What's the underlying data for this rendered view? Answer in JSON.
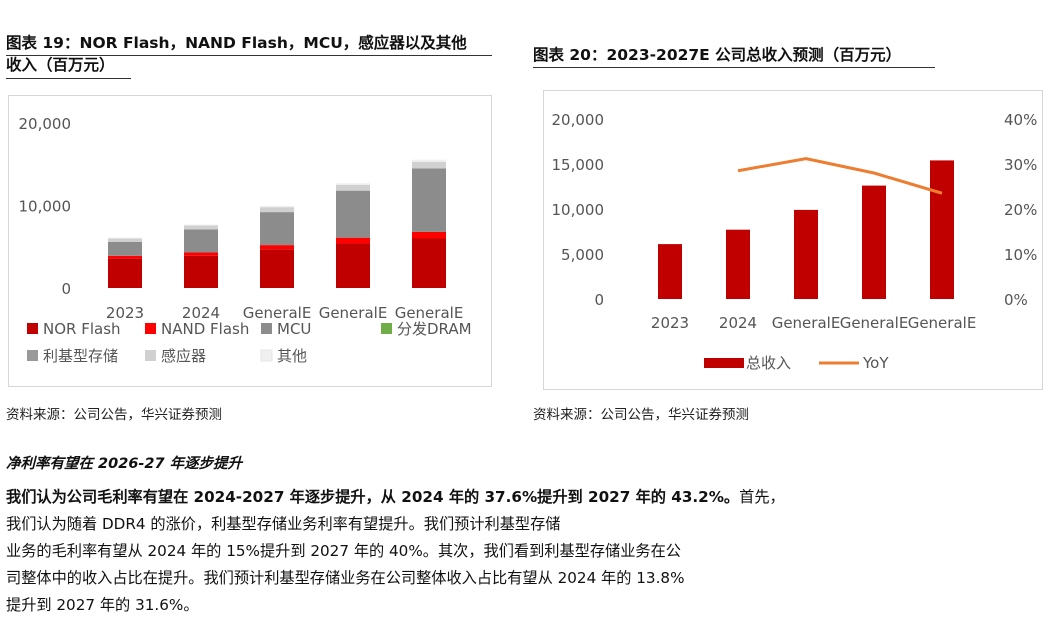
{
  "left_figure": {
    "title_line1": "图表 19：NOR Flash，NAND Flash，MCU，感应器以及其他",
    "title_line2": "收入（百万元）",
    "source": "资料来源：公司公告，华兴证券预测"
  },
  "right_figure": {
    "title": "图表 20：2023-2027E  公司总收入预测（百万元）",
    "source": "资料来源：公司公告，华兴证券预测"
  },
  "section": {
    "heading": "净利率有望在 2026-27  年逐步提升",
    "para_bold": "我们认为公司毛利率有望在 2024-2027  年逐步提升，从 2024  年的 37.6%提升到 2027  年的 43.2%。",
    "para_line1_rest": "首先，我们认为随着 DDR4  的涨价，利基型存储业务利率有望提升。我们预计利基型存储",
    "para_line2": "业务的毛利率有望从 2024  年的 15%提升到 2027  年的 40%。其次，我们看到利基型存储业务在公",
    "para_line3": "司整体中的收入占比在提升。我们预计利基型存储业务在公司整体收入占比有望从 2024  年的 13.8%",
    "para_line4": "提升到 2027  年的 31.6%。"
  },
  "chart_data": [
    {
      "type": "bar",
      "stacked": true,
      "categories": [
        "2023",
        "2024",
        "GeneralE",
        "GeneralE",
        "GeneralE"
      ],
      "series": [
        {
          "name": "NOR Flash",
          "color": "#c00000",
          "values": [
            3600,
            3900,
            4700,
            5400,
            6000
          ]
        },
        {
          "name": "NAND Flash",
          "color": "#ff0000",
          "values": [
            300,
            400,
            500,
            700,
            800
          ]
        },
        {
          "name": "MCU",
          "color": "#8c8c8c",
          "values": [
            1700,
            2800,
            4000,
            5700,
            7700
          ]
        },
        {
          "name": "分发DRAM",
          "color": "#70ad47",
          "values": [
            0,
            0,
            0,
            0,
            0
          ]
        },
        {
          "name": "利基型存储",
          "color": "#999999",
          "values": [
            0,
            0,
            0,
            0,
            0
          ]
        },
        {
          "name": "感应器",
          "color": "#d0d0d0",
          "values": [
            400,
            500,
            600,
            700,
            800
          ]
        },
        {
          "name": "其他",
          "color": "#f0f0f0",
          "values": [
            100,
            100,
            150,
            200,
            250
          ]
        }
      ],
      "ylim": [
        0,
        20000
      ],
      "yticks": [
        0,
        10000,
        20000
      ],
      "ytick_labels": [
        "0",
        "10,000",
        "20,000"
      ],
      "legend_position": "bottom",
      "grid": false
    },
    {
      "type": "bar+line",
      "categories": [
        "2023",
        "2024",
        "GeneralE",
        "GeneralE",
        "GeneralE"
      ],
      "series": [
        {
          "name": "总收入",
          "kind": "bar",
          "axis": "left",
          "color": "#c00000",
          "values": [
            6100,
            7700,
            9900,
            12600,
            15400
          ]
        },
        {
          "name": "YoY",
          "kind": "line",
          "axis": "right",
          "color": "#ed7d31",
          "values": [
            null,
            28.5,
            31.2,
            28.0,
            23.5
          ]
        }
      ],
      "ylim": [
        0,
        20000
      ],
      "yticks": [
        0,
        5000,
        10000,
        15000,
        20000
      ],
      "ytick_labels": [
        "0",
        "5,000",
        "10,000",
        "15,000",
        "20,000"
      ],
      "y2lim": [
        0,
        40
      ],
      "y2ticks": [
        0,
        10,
        20,
        30,
        40
      ],
      "y2tick_labels": [
        "0%",
        "10%",
        "20%",
        "30%",
        "40%"
      ],
      "legend_position": "bottom",
      "grid": false
    }
  ]
}
